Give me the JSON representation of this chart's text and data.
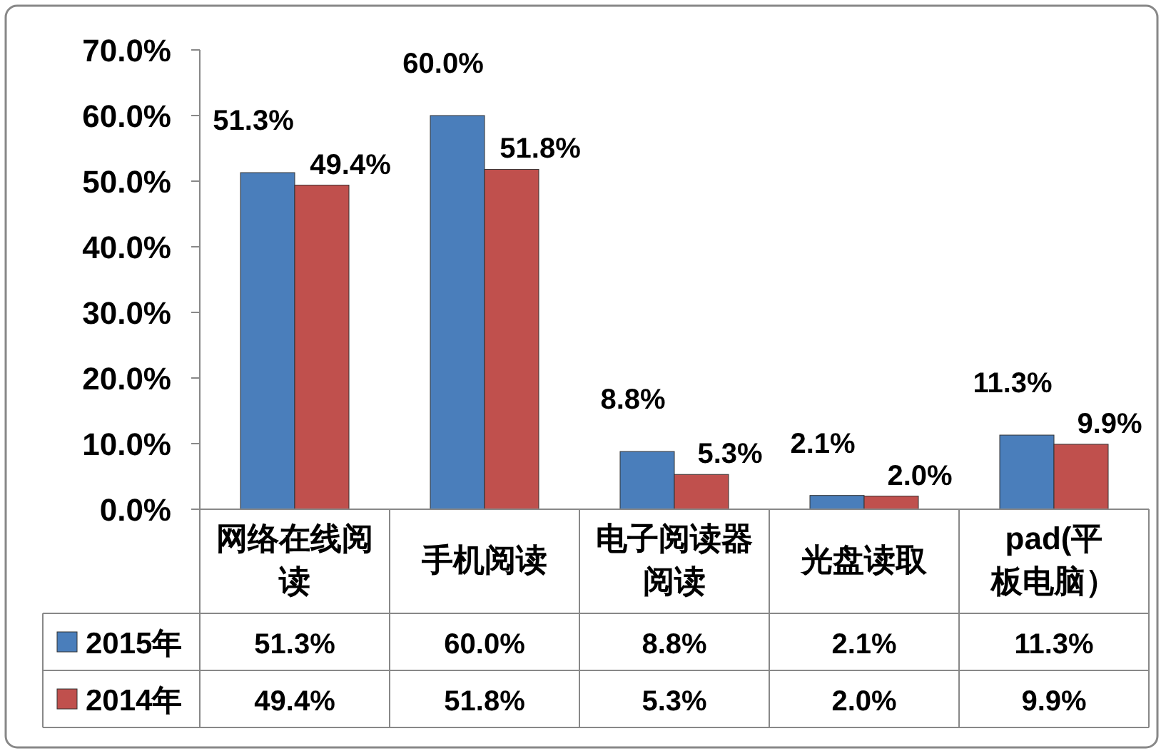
{
  "chart_data": {
    "type": "bar",
    "categories": [
      "网络在线阅读",
      "手机阅读",
      "电子阅读器阅读",
      "光盘读取",
      "pad(平板电脑）"
    ],
    "series": [
      {
        "name": "2015年",
        "color": "#4a7ebb",
        "values": [
          51.3,
          60.0,
          8.8,
          2.1,
          11.3
        ],
        "value_labels": [
          "51.3%",
          "60.0%",
          "8.8%",
          "2.1%",
          "11.3%"
        ]
      },
      {
        "name": "2014年",
        "color": "#c0504d",
        "values": [
          49.4,
          51.8,
          5.3,
          2.0,
          9.9
        ],
        "value_labels": [
          "49.4%",
          "51.8%",
          "5.3%",
          "2.0%",
          "9.9%"
        ]
      }
    ],
    "ylim": [
      0,
      70
    ],
    "yticks": [
      {
        "value": 0,
        "label": "0.0%"
      },
      {
        "value": 10,
        "label": "10.0%"
      },
      {
        "value": 20,
        "label": "20.0%"
      },
      {
        "value": 30,
        "label": "30.0%"
      },
      {
        "value": 40,
        "label": "40.0%"
      },
      {
        "value": 50,
        "label": "50.0%"
      },
      {
        "value": 60,
        "label": "60.0%"
      },
      {
        "value": 70,
        "label": "70.0%"
      }
    ],
    "legend": "bottom left",
    "grid": false
  }
}
